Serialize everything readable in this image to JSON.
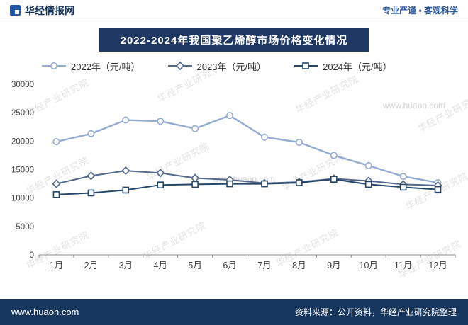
{
  "header": {
    "brand": "华经情报网",
    "slogan": "专业严谨 • 客观科学"
  },
  "title": "2022-2024年我国聚乙烯醇市场价格变化情况",
  "watermark": {
    "diagonal_text": "华经产业研究院",
    "site_text": "www.huaon.com"
  },
  "chart_data": {
    "type": "line",
    "title": "2022-2024年我国聚乙烯醇市场价格变化情况",
    "categories": [
      "1月",
      "2月",
      "3月",
      "4月",
      "5月",
      "6月",
      "7月",
      "8月",
      "9月",
      "10月",
      "11月",
      "12月"
    ],
    "series": [
      {
        "name": "2022年（元/吨）",
        "marker": "circle",
        "color": "#94ACD0",
        "values": [
          19900,
          21300,
          23700,
          23500,
          22200,
          24500,
          20700,
          19800,
          17500,
          15700,
          13800,
          12700
        ]
      },
      {
        "name": "2023年（元/吨）",
        "marker": "diamond",
        "color": "#53688C",
        "values": [
          12500,
          13900,
          14800,
          14400,
          13500,
          13200,
          12600,
          12800,
          13400,
          13000,
          12400,
          12200
        ]
      },
      {
        "name": "2024年（元/吨）",
        "marker": "square",
        "color": "#24466B",
        "values": [
          10600,
          10900,
          11400,
          12300,
          12400,
          12500,
          12500,
          12700,
          13300,
          12400,
          11900,
          11500
        ]
      }
    ],
    "xlabel": "",
    "ylabel": "",
    "ylim": [
      0,
      30000
    ],
    "ytick_step": 5000,
    "yticks": [
      0,
      5000,
      10000,
      15000,
      20000,
      25000,
      30000
    ],
    "grid": false,
    "legend_position": "top"
  },
  "footer": {
    "site": "www.huaon.com",
    "source": "资料来源：公开资料，华经产业研究院整理"
  }
}
